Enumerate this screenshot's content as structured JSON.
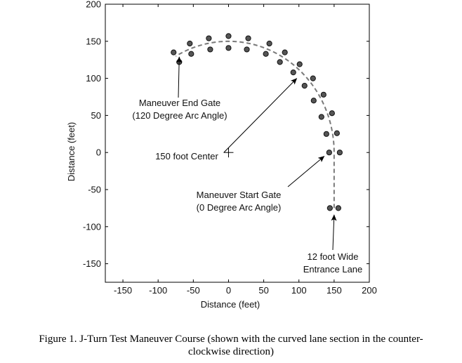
{
  "chart_data": {
    "type": "scatter",
    "title": "",
    "xlabel": "Distance (feet)",
    "ylabel": "Distance (feet)",
    "xlim": [
      -175,
      200
    ],
    "ylim": [
      -175,
      200
    ],
    "x_ticks": [
      -150,
      -100,
      -50,
      0,
      50,
      100,
      150,
      200
    ],
    "y_ticks": [
      -150,
      -100,
      -50,
      0,
      50,
      100,
      150,
      200
    ],
    "grid": false,
    "center_marker": {
      "x": 0,
      "y": 0,
      "label": "150 foot Center"
    },
    "lane_centerline": {
      "radius": 150,
      "arc_start_deg": 0,
      "arc_end_deg": 120,
      "entrance": [
        [
          150,
          -75
        ],
        [
          150,
          0
        ]
      ]
    },
    "series": [
      {
        "points": [
          [
            144,
            -75
          ],
          [
            156,
            -75
          ],
          [
            143,
            0
          ],
          [
            158,
            0
          ],
          [
            139,
            25
          ],
          [
            154,
            26
          ],
          [
            132,
            48
          ],
          [
            147,
            53
          ],
          [
            121,
            70
          ],
          [
            135,
            78
          ],
          [
            108,
            90
          ],
          [
            120,
            100
          ],
          [
            92,
            108
          ],
          [
            101,
            119
          ],
          [
            73,
            122
          ],
          [
            80,
            135
          ],
          [
            53,
            133
          ],
          [
            58,
            147
          ],
          [
            26,
            139
          ],
          [
            28,
            154
          ],
          [
            0,
            141
          ],
          [
            0,
            157
          ],
          [
            -26,
            139
          ],
          [
            -28,
            154
          ],
          [
            -53,
            133
          ],
          [
            -55,
            147
          ],
          [
            -70,
            122
          ],
          [
            -78,
            135
          ]
        ]
      }
    ],
    "annotations": [
      {
        "lines": [
          "Maneuver End Gate",
          "(120 Degree Arc Angle)"
        ],
        "target": [
          -70,
          129
        ]
      },
      {
        "lines": [
          "150 foot Center"
        ],
        "target": [
          97,
          100
        ]
      },
      {
        "lines": [
          "Maneuver Start Gate",
          "(0 Degree Arc Angle)"
        ],
        "target": [
          136,
          -5
        ]
      },
      {
        "lines": [
          "12 foot Wide",
          "Entrance Lane"
        ],
        "target": [
          150,
          -84
        ]
      }
    ]
  },
  "caption": {
    "line1": "Figure 1. J-Turn Test Maneuver Course (shown with the curved lane section in the counter-",
    "line2": "clockwise direction)"
  }
}
